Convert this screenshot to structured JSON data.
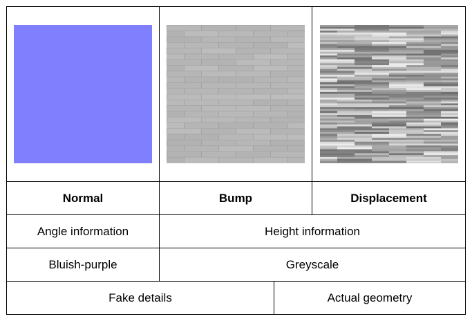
{
  "table": {
    "images": [
      {
        "name": "normal-map-preview",
        "color": "#8080ff"
      },
      {
        "name": "bump-map-preview",
        "color": "#b8b8b8"
      },
      {
        "name": "displacement-map-preview",
        "color": "#9c9c9c"
      }
    ],
    "headers": [
      "Normal",
      "Bump",
      "Displacement"
    ],
    "row_info": {
      "normal": "Angle information",
      "other": "Height information"
    },
    "row_color": {
      "normal": "Bluish-purple",
      "other": "Greyscale"
    },
    "row_geometry": {
      "left": "Fake details",
      "right": "Actual geometry"
    }
  }
}
